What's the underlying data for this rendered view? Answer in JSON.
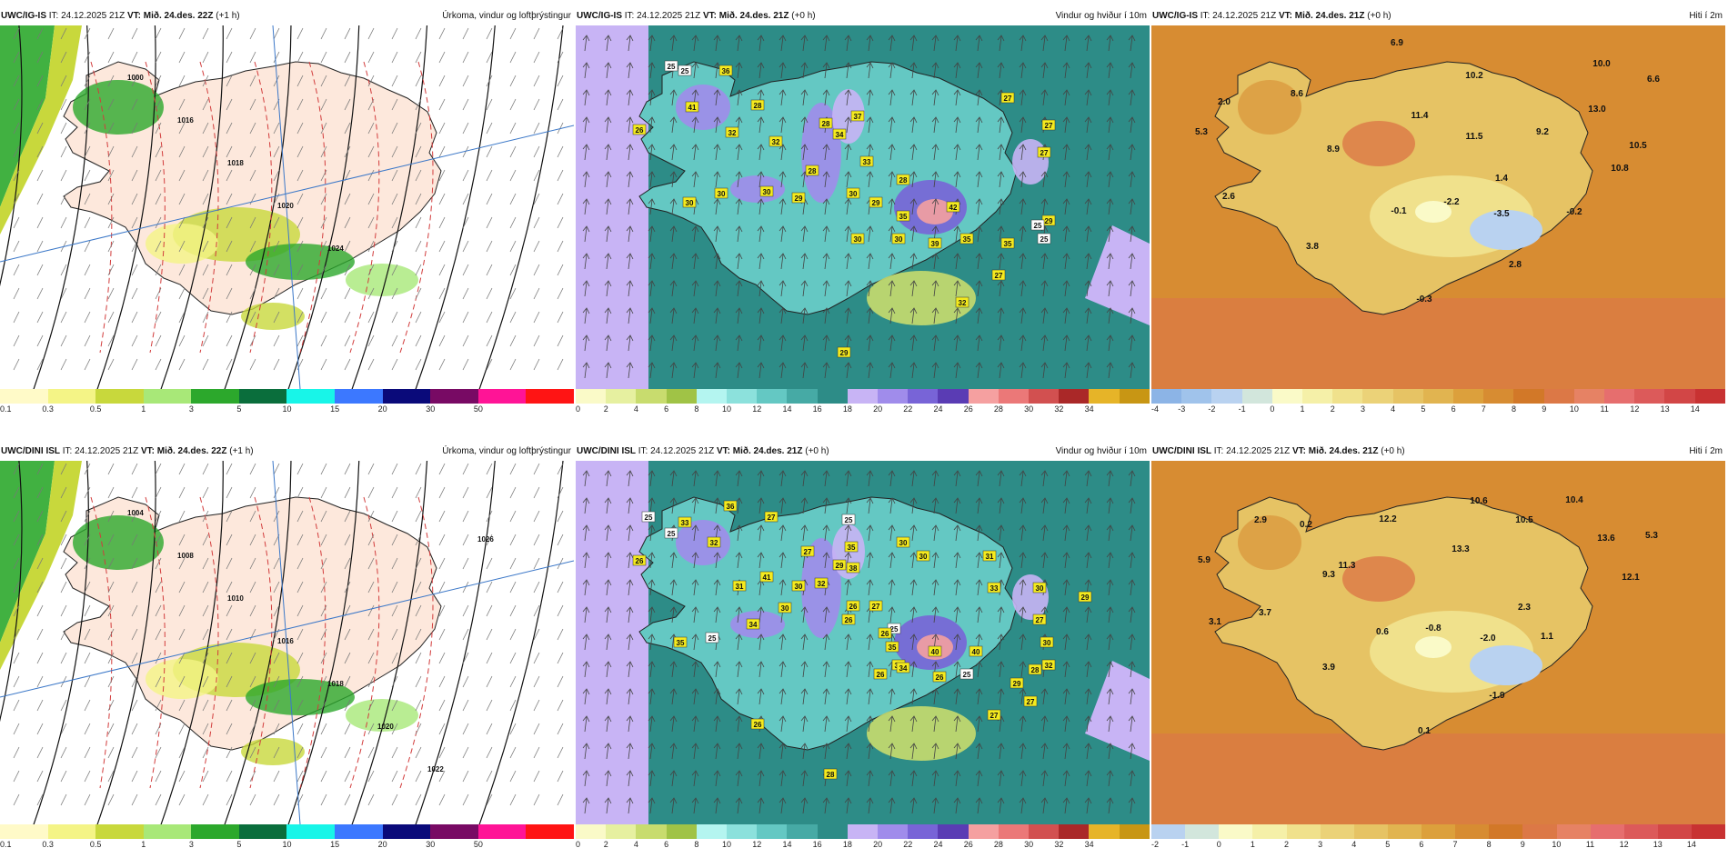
{
  "rows": [
    {
      "model": "UWC/IG-IS",
      "panels": [
        {
          "type": "precip",
          "it": "IT: 24.12.2025 21Z",
          "vt": "VT: Mið. 24.des. 22Z",
          "lead": "(+1 h)",
          "title": "Úrkoma, vindur og loftþrýstingur",
          "labels": [],
          "pressure_labels": [
            "1000",
            "1016",
            "1018",
            "1020",
            "1024"
          ]
        },
        {
          "type": "wind",
          "it": "IT: 24.12.2025 21Z",
          "vt": "VT: Mið. 24.des. 21Z",
          "lead": "(+0 h)",
          "title": "Vindur og hviður í 10m",
          "labels": [
            "25",
            "25",
            "36",
            "41",
            "28",
            "26",
            "32",
            "32",
            "28",
            "37",
            "34",
            "28",
            "33",
            "28",
            "27",
            "27",
            "27",
            "30",
            "30",
            "30",
            "30",
            "29",
            "29",
            "35",
            "42",
            "30",
            "30",
            "39",
            "35",
            "35",
            "29",
            "25",
            "25",
            "27",
            "32",
            "29"
          ]
        },
        {
          "type": "temp",
          "it": "IT: 24.12.2025 21Z",
          "vt": "VT: Mið. 24.des. 21Z",
          "lead": "(+0 h)",
          "title": "Hiti í 2m",
          "labels": [
            "6.9",
            "10.0",
            "10.2",
            "6.6",
            "2.0",
            "8.6",
            "11.4",
            "13.0",
            "5.3",
            "11.5",
            "9.2",
            "10.5",
            "8.9",
            "10.8",
            "1.4",
            "2.6",
            "-0.1",
            "-2.2",
            "-3.5",
            "-0.2",
            "3.8",
            "2.8",
            "-0.3"
          ]
        }
      ]
    },
    {
      "model": "UWC/DINI ISL",
      "panels": [
        {
          "type": "precip",
          "it": "IT: 24.12.2025 21Z",
          "vt": "VT: Mið. 24.des. 22Z",
          "lead": "(+1 h)",
          "title": "Úrkoma, vindur og loftþrýstingur",
          "labels": [],
          "pressure_labels": [
            "1004",
            "1008",
            "1010",
            "1016",
            "1018",
            "1020",
            "1022",
            "1026"
          ]
        },
        {
          "type": "wind",
          "it": "IT: 24.12.2025 21Z",
          "vt": "VT: Mið. 24.des. 21Z",
          "lead": "(+0 h)",
          "title": "Vindur og hviður í 10m",
          "labels": [
            "25",
            "33",
            "36",
            "27",
            "25",
            "26",
            "32",
            "25",
            "35",
            "30",
            "27",
            "38",
            "32",
            "31",
            "30",
            "26",
            "27",
            "25",
            "40",
            "34",
            "26",
            "26",
            "25",
            "29",
            "32",
            "27",
            "30",
            "28",
            "33",
            "30",
            "29",
            "31",
            "30",
            "29",
            "41",
            "30",
            "26",
            "26",
            "35",
            "40",
            "34",
            "25",
            "35",
            "34",
            "27",
            "27",
            "26",
            "28"
          ]
        },
        {
          "type": "temp",
          "it": "IT: 24.12.2025 21Z",
          "vt": "VT: Mið. 24.des. 21Z",
          "lead": "(+0 h)",
          "title": "Hiti í 2m",
          "labels": [
            "10.6",
            "10.4",
            "2.9",
            "0.2",
            "12.2",
            "10.5",
            "13.6",
            "5.3",
            "5.9",
            "13.3",
            "9.3",
            "11.3",
            "12.1",
            "3.1",
            "3.7",
            "2.3",
            "0.6",
            "-0.8",
            "-2.0",
            "1.1",
            "3.9",
            "-1.9",
            "0.1"
          ]
        }
      ]
    }
  ],
  "colorbars": {
    "precip": {
      "ticks": [
        "0.1",
        "0.3",
        "0.5",
        "1",
        "3",
        "5",
        "10",
        "15",
        "20",
        "30",
        "50"
      ],
      "colors": [
        "#fffac8",
        "#f4f486",
        "#c8d83c",
        "#a8e878",
        "#2ca82c",
        "#0a6e3c",
        "#18f5e8",
        "#3c78ff",
        "#0a0a7a",
        "#780a64",
        "#ff1496",
        "#ff1414"
      ]
    },
    "wind": {
      "ticks": [
        "0",
        "2",
        "4",
        "6",
        "8",
        "10",
        "12",
        "14",
        "16",
        "18",
        "20",
        "22",
        "24",
        "26",
        "28",
        "30",
        "32",
        "34"
      ],
      "colors": [
        "#fafac8",
        "#e6f0a0",
        "#c8dc6e",
        "#a0c346",
        "#b4f5f0",
        "#8ce1dc",
        "#64c8c3",
        "#46aaa5",
        "#2d8c87",
        "#c8b4f5",
        "#a08ceb",
        "#7864d7",
        "#5a3cb4",
        "#f5a0a0",
        "#eb7878",
        "#d25050",
        "#aa2828",
        "#e6b428",
        "#c89614"
      ]
    },
    "temp_top": {
      "ticks": [
        "-4",
        "-3",
        "-2",
        "-1",
        "0",
        "1",
        "2",
        "3",
        "4",
        "5",
        "6",
        "7",
        "8",
        "9",
        "10",
        "11",
        "12",
        "13",
        "14"
      ],
      "colors": [
        "#8cb4e6",
        "#a0c3eb",
        "#b9d2f0",
        "#d2e6dc",
        "#fafac8",
        "#f5f0a8",
        "#f0e18c",
        "#ebd278",
        "#e6c364",
        "#e1b450",
        "#dca03c",
        "#d78c32",
        "#d27828",
        "#dc7846",
        "#e68264",
        "#e66e6e",
        "#dc5a5a",
        "#d24646",
        "#c83232"
      ]
    },
    "temp_bot": {
      "ticks": [
        "-2",
        "-1",
        "0",
        "1",
        "2",
        "3",
        "4",
        "5",
        "6",
        "7",
        "8",
        "9",
        "10",
        "11",
        "12",
        "13",
        "14"
      ],
      "colors": [
        "#b9d2f0",
        "#d2e6dc",
        "#fafac8",
        "#f5f0a8",
        "#f0e18c",
        "#ebd278",
        "#e6c364",
        "#e1b450",
        "#dca03c",
        "#d78c32",
        "#d27828",
        "#dc7846",
        "#e68264",
        "#e66e6e",
        "#dc5a5a",
        "#d24646",
        "#c83232"
      ]
    }
  }
}
